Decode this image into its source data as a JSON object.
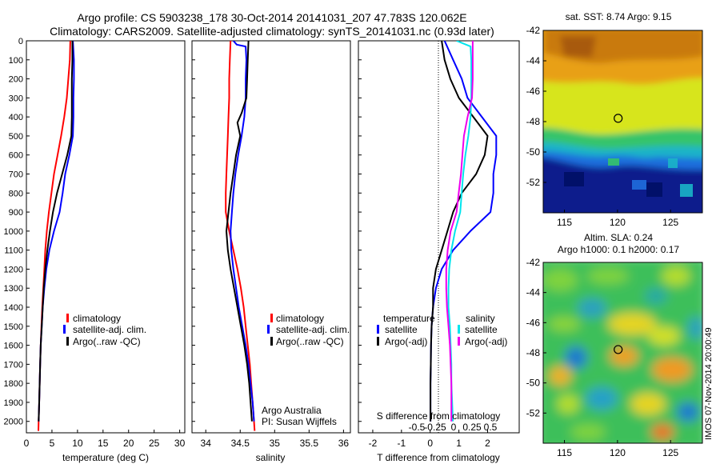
{
  "title": {
    "line1": "Argo profile: CS 5903238_178 30-Oct-2014 20141031_207 47.783S 120.062E",
    "line2": "Climatology: CARS2009. Satellite-adjusted climatology: synTS_20141031.nc (0.93d later)"
  },
  "credit": {
    "line1": "Argo Australia",
    "line2": "PI: Susan Wijffels"
  },
  "timestamp": "IMOS 07-Nov-2014 20:00:49",
  "colors": {
    "climatology": "#ff0000",
    "satellite": "#0000ff",
    "argo": "#000000",
    "sat_salinity": "#00e5ee",
    "argo_salinity": "#ee00ee"
  },
  "depth_axis": {
    "ticks": [
      0,
      100,
      200,
      300,
      400,
      500,
      600,
      700,
      800,
      900,
      1000,
      1100,
      1200,
      1300,
      1400,
      1500,
      1600,
      1700,
      1800,
      1900,
      2000
    ],
    "range": [
      0,
      2060
    ]
  },
  "chart_data": [
    {
      "type": "line",
      "xlabel": "temperature (deg C)",
      "xlim": [
        0,
        31
      ],
      "xticks": [
        0,
        5,
        10,
        15,
        20,
        25,
        30
      ],
      "legend_position": "lower-center",
      "series": [
        {
          "name": "climatology",
          "color": "#ff0000",
          "points": [
            [
              8.6,
              0
            ],
            [
              8.5,
              100
            ],
            [
              8.2,
              200
            ],
            [
              7.9,
              300
            ],
            [
              7.4,
              400
            ],
            [
              6.8,
              500
            ],
            [
              6.1,
              600
            ],
            [
              5.4,
              700
            ],
            [
              4.9,
              800
            ],
            [
              4.4,
              900
            ],
            [
              4.0,
              1000
            ],
            [
              3.7,
              1100
            ],
            [
              3.5,
              1200
            ],
            [
              3.3,
              1300
            ],
            [
              3.1,
              1400
            ],
            [
              2.95,
              1500
            ],
            [
              2.8,
              1600
            ],
            [
              2.7,
              1700
            ],
            [
              2.6,
              1800
            ],
            [
              2.5,
              1900
            ],
            [
              2.4,
              2000
            ],
            [
              2.35,
              2050
            ]
          ]
        },
        {
          "name": "satellite-adj. clim.",
          "color": "#0000ff",
          "points": [
            [
              9.1,
              0
            ],
            [
              9.3,
              100
            ],
            [
              9.3,
              200
            ],
            [
              9.2,
              300
            ],
            [
              9.2,
              400
            ],
            [
              9.1,
              500
            ],
            [
              8.4,
              600
            ],
            [
              7.6,
              700
            ],
            [
              7.1,
              800
            ],
            [
              6.5,
              900
            ],
            [
              5.4,
              1000
            ],
            [
              4.5,
              1100
            ],
            [
              3.9,
              1200
            ],
            [
              3.5,
              1300
            ],
            [
              3.2,
              1400
            ],
            [
              3.0,
              1500
            ],
            [
              2.8,
              1600
            ],
            [
              2.7,
              1700
            ],
            [
              2.6,
              1800
            ],
            [
              2.5,
              1900
            ],
            [
              2.4,
              2000
            ]
          ]
        },
        {
          "name": "Argo(..raw -QC)",
          "color": "#000000",
          "points": [
            [
              9.0,
              0
            ],
            [
              9.0,
              100
            ],
            [
              8.9,
              200
            ],
            [
              8.9,
              300
            ],
            [
              8.9,
              400
            ],
            [
              8.8,
              500
            ],
            [
              8.0,
              600
            ],
            [
              7.0,
              700
            ],
            [
              6.0,
              800
            ],
            [
              5.2,
              900
            ],
            [
              4.6,
              1000
            ],
            [
              4.1,
              1100
            ],
            [
              3.7,
              1200
            ],
            [
              3.4,
              1300
            ],
            [
              3.2,
              1400
            ],
            [
              3.0,
              1500
            ],
            [
              2.8,
              1600
            ],
            [
              2.7,
              1700
            ],
            [
              2.6,
              1800
            ],
            [
              2.5,
              1900
            ],
            [
              2.4,
              2000
            ]
          ]
        }
      ]
    },
    {
      "type": "line",
      "xlabel": "salinity",
      "xlim": [
        33.8,
        36.1
      ],
      "xticks": [
        34,
        34.5,
        35,
        35.5,
        36
      ],
      "legend_position": "lower-center",
      "series": [
        {
          "name": "climatology",
          "color": "#ff0000",
          "points": [
            [
              34.36,
              0
            ],
            [
              34.35,
              100
            ],
            [
              34.34,
              200
            ],
            [
              34.34,
              300
            ],
            [
              34.33,
              400
            ],
            [
              34.32,
              500
            ],
            [
              34.31,
              600
            ],
            [
              34.3,
              700
            ],
            [
              34.29,
              800
            ],
            [
              34.29,
              900
            ],
            [
              34.34,
              1000
            ],
            [
              34.4,
              1100
            ],
            [
              34.46,
              1200
            ],
            [
              34.51,
              1300
            ],
            [
              34.55,
              1400
            ],
            [
              34.58,
              1500
            ],
            [
              34.61,
              1600
            ],
            [
              34.64,
              1700
            ],
            [
              34.66,
              1800
            ],
            [
              34.68,
              1900
            ],
            [
              34.7,
              2000
            ],
            [
              34.71,
              2050
            ]
          ]
        },
        {
          "name": "satellite-adj. clim.",
          "color": "#0000ff",
          "points": [
            [
              34.4,
              0
            ],
            [
              34.45,
              20
            ],
            [
              34.58,
              30
            ],
            [
              34.59,
              100
            ],
            [
              34.58,
              200
            ],
            [
              34.58,
              300
            ],
            [
              34.56,
              400
            ],
            [
              34.52,
              500
            ],
            [
              34.47,
              600
            ],
            [
              34.43,
              700
            ],
            [
              34.4,
              800
            ],
            [
              34.38,
              900
            ],
            [
              34.36,
              1000
            ],
            [
              34.37,
              1100
            ],
            [
              34.4,
              1200
            ],
            [
              34.44,
              1300
            ],
            [
              34.48,
              1400
            ],
            [
              34.53,
              1500
            ],
            [
              34.58,
              1600
            ],
            [
              34.62,
              1700
            ],
            [
              34.65,
              1800
            ],
            [
              34.68,
              1900
            ],
            [
              34.7,
              2000
            ]
          ]
        },
        {
          "name": "Argo(..raw -QC)",
          "color": "#000000",
          "points": [
            [
              34.62,
              0
            ],
            [
              34.61,
              100
            ],
            [
              34.6,
              200
            ],
            [
              34.59,
              300
            ],
            [
              34.52,
              380
            ],
            [
              34.46,
              430
            ],
            [
              34.5,
              500
            ],
            [
              34.44,
              600
            ],
            [
              34.4,
              700
            ],
            [
              34.36,
              800
            ],
            [
              34.33,
              900
            ],
            [
              34.3,
              1000
            ],
            [
              34.32,
              1100
            ],
            [
              34.36,
              1200
            ],
            [
              34.41,
              1300
            ],
            [
              34.46,
              1400
            ],
            [
              34.51,
              1500
            ],
            [
              34.56,
              1600
            ],
            [
              34.6,
              1700
            ],
            [
              34.63,
              1800
            ],
            [
              34.65,
              1900
            ],
            [
              34.67,
              2000
            ]
          ]
        }
      ]
    },
    {
      "type": "line",
      "xlabel": "T difference from climatology",
      "xlim": [
        -2.5,
        3.1
      ],
      "xticks": [
        -2,
        -1,
        0,
        1,
        2
      ],
      "top_axis_label": "S difference from climatology",
      "top_axis_ticks": [
        -0.5,
        -0.25,
        0,
        0.25,
        0.5
      ],
      "legend_left_header": "temperature",
      "legend_right_header": "salinity",
      "series": [
        {
          "name": "satellite",
          "group": "temperature",
          "color": "#0000ff",
          "points": [
            [
              0.5,
              0
            ],
            [
              0.8,
              100
            ],
            [
              1.1,
              200
            ],
            [
              1.3,
              300
            ],
            [
              1.8,
              400
            ],
            [
              2.3,
              500
            ],
            [
              2.3,
              600
            ],
            [
              2.2,
              700
            ],
            [
              2.2,
              800
            ],
            [
              2.1,
              900
            ],
            [
              1.4,
              1000
            ],
            [
              0.8,
              1100
            ],
            [
              0.4,
              1200
            ],
            [
              0.2,
              1300
            ],
            [
              0.1,
              1400
            ],
            [
              0.05,
              1500
            ],
            [
              0.03,
              1600
            ],
            [
              0.02,
              1700
            ],
            [
              0.01,
              1800
            ],
            [
              0.01,
              1900
            ],
            [
              0.01,
              2000
            ]
          ]
        },
        {
          "name": "Argo(-adj)",
          "group": "temperature",
          "color": "#000000",
          "points": [
            [
              0.4,
              0
            ],
            [
              0.5,
              100
            ],
            [
              0.7,
              200
            ],
            [
              1.0,
              300
            ],
            [
              1.5,
              400
            ],
            [
              2.0,
              500
            ],
            [
              1.9,
              600
            ],
            [
              1.6,
              700
            ],
            [
              1.1,
              800
            ],
            [
              0.8,
              900
            ],
            [
              0.6,
              1000
            ],
            [
              0.4,
              1100
            ],
            [
              0.2,
              1200
            ],
            [
              0.1,
              1300
            ],
            [
              0.1,
              1400
            ],
            [
              0.05,
              1500
            ],
            [
              0.03,
              1600
            ],
            [
              0.02,
              1700
            ],
            [
              0.01,
              1800
            ],
            [
              0.01,
              1900
            ],
            [
              0.01,
              2000
            ]
          ]
        },
        {
          "name": "satellite",
          "group": "salinity",
          "color": "#00e5ee",
          "points": [
            [
              0.04,
              0
            ],
            [
              0.23,
              30
            ],
            [
              0.24,
              100
            ],
            [
              0.24,
              200
            ],
            [
              0.24,
              300
            ],
            [
              0.23,
              400
            ],
            [
              0.2,
              500
            ],
            [
              0.16,
              600
            ],
            [
              0.13,
              700
            ],
            [
              0.11,
              800
            ],
            [
              0.09,
              900
            ],
            [
              0.02,
              1000
            ],
            [
              -0.03,
              1100
            ],
            [
              -0.06,
              1200
            ],
            [
              -0.07,
              1300
            ],
            [
              -0.07,
              1400
            ],
            [
              -0.05,
              1500
            ],
            [
              -0.04,
              1600
            ],
            [
              -0.03,
              1700
            ],
            [
              -0.03,
              1800
            ],
            [
              -0.02,
              1900
            ],
            [
              -0.01,
              2000
            ]
          ]
        },
        {
          "name": "Argo(-adj)",
          "group": "salinity",
          "color": "#ee00ee",
          "points": [
            [
              0.26,
              0
            ],
            [
              0.26,
              100
            ],
            [
              0.26,
              200
            ],
            [
              0.25,
              300
            ],
            [
              0.19,
              400
            ],
            [
              0.14,
              500
            ],
            [
              0.12,
              600
            ],
            [
              0.1,
              700
            ],
            [
              0.07,
              800
            ],
            [
              0.04,
              900
            ],
            [
              -0.04,
              1000
            ],
            [
              -0.08,
              1100
            ],
            [
              -0.1,
              1200
            ],
            [
              -0.1,
              1300
            ],
            [
              -0.09,
              1400
            ],
            [
              -0.07,
              1500
            ],
            [
              -0.05,
              1600
            ],
            [
              -0.04,
              1700
            ],
            [
              -0.03,
              1800
            ],
            [
              -0.03,
              1900
            ],
            [
              -0.03,
              2000
            ]
          ]
        }
      ]
    },
    {
      "type": "heatmap",
      "title": "sat. SST: 8.74  Argo: 9.15",
      "xlim": [
        113,
        128
      ],
      "ylim": [
        -54,
        -42
      ],
      "xticks": [
        115,
        120,
        125
      ],
      "yticks": [
        -42,
        -44,
        -46,
        -48,
        -50,
        -52
      ],
      "marker": [
        120.062,
        -47.783
      ]
    },
    {
      "type": "heatmap",
      "title": "Altim. SLA: 0.24",
      "subtitle": "Argo h1000: 0.1  h2000: 0.17",
      "xlim": [
        113,
        128
      ],
      "ylim": [
        -54,
        -42
      ],
      "xticks": [
        115,
        120,
        125
      ],
      "yticks": [
        -42,
        -44,
        -46,
        -48,
        -50,
        -52
      ],
      "marker": [
        120.062,
        -47.783
      ]
    }
  ]
}
